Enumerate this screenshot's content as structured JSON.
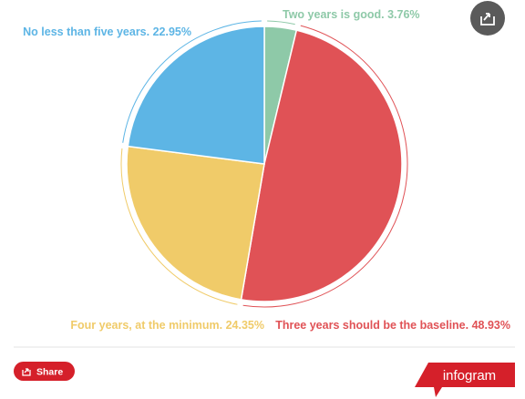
{
  "chart_data": {
    "type": "pie",
    "categories": [
      "Two years is good.",
      "Three years should be the baseline.",
      "Four years, at the minimum.",
      "No less than five years."
    ],
    "values": [
      3.76,
      48.93,
      24.35,
      22.95
    ],
    "value_labels": [
      "3.76%",
      "48.93%",
      "24.35%",
      "22.95%"
    ],
    "colors": [
      "#8ec9a8",
      "#e05256",
      "#f0cb69",
      "#5db5e5"
    ]
  },
  "ui": {
    "share": "Share",
    "brand": "infogram"
  }
}
